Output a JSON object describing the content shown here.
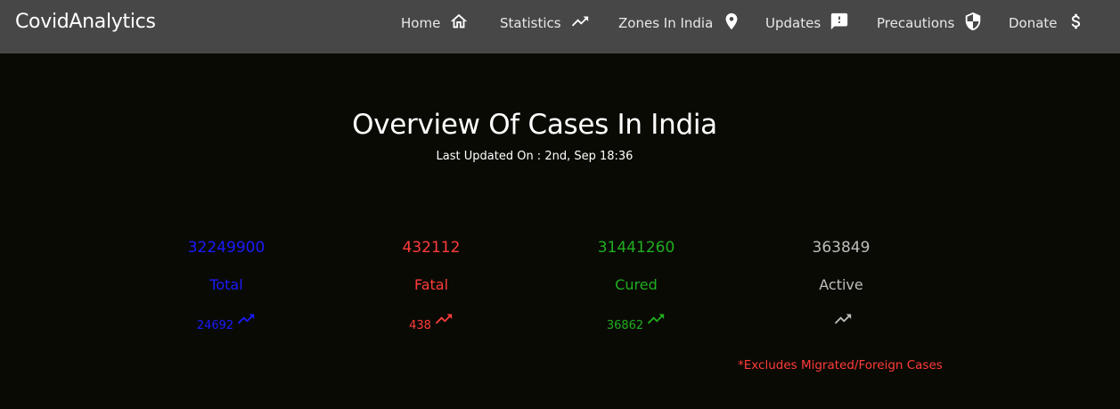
{
  "nav": {
    "brand": "CovidAnalytics",
    "items": [
      {
        "label": "Home",
        "icon": "home-icon"
      },
      {
        "label": "Statistics",
        "icon": "trending-up-icon"
      },
      {
        "label": "Zones In India",
        "icon": "location-pin-icon"
      },
      {
        "label": "Updates",
        "icon": "alert-message-icon"
      },
      {
        "label": "Precautions",
        "icon": "shield-icon"
      },
      {
        "label": "Donate",
        "icon": "dollar-icon"
      }
    ]
  },
  "overview": {
    "title": "Overview Of Cases In India",
    "last_updated": "Last Updated On : 2nd, Sep 18:36"
  },
  "stats": [
    {
      "value": "32249900",
      "label": "Total",
      "delta": "24692",
      "color": "#1a1aff"
    },
    {
      "value": "432112",
      "label": "Fatal",
      "delta": "438",
      "color": "#ff3b3b"
    },
    {
      "value": "31441260",
      "label": "Cured",
      "delta": "36862",
      "color": "#1fae1f"
    },
    {
      "value": "363849",
      "label": "Active",
      "delta": "",
      "color": "#bdbdbd"
    }
  ],
  "note": "*Excludes Migrated/Foreign Cases",
  "colors": {
    "navbar": "#474747",
    "background": "#0a0a04"
  }
}
